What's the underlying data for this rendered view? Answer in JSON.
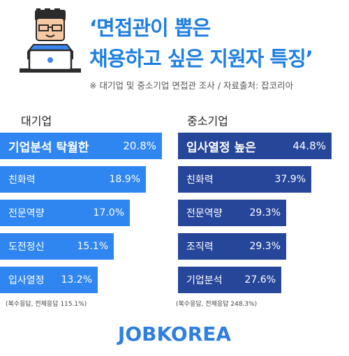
{
  "title_line1": "‘면접관이 뽑은",
  "title_line2": "채용하고 싶은 지원자 특징’",
  "note": "※ 대기업 및 중소기업 면접관 조사 / 자료출처: 잡코리아",
  "logo": "JOBKOREA",
  "colors": {
    "large": "#2f86f0",
    "small": "#26469a",
    "title": "#1f7fe0"
  },
  "chart_data": [
    {
      "type": "bar",
      "title": "대기업",
      "categories": [
        "기업분석 탁월한",
        "친화력",
        "전문역량",
        "도전정신",
        "입사열정"
      ],
      "values": [
        20.8,
        18.9,
        17.0,
        15.1,
        13.2
      ],
      "value_labels": [
        "20.8%",
        "18.9%",
        "17.0%",
        "15.1%",
        "13.2%"
      ],
      "footnote": "(복수응답, 전체응답 115.1%)"
    },
    {
      "type": "bar",
      "title": "중소기업",
      "categories": [
        "입사열정 높은",
        "친화력",
        "전문역량",
        "조직력",
        "기업분석"
      ],
      "values": [
        44.8,
        37.9,
        29.3,
        29.3,
        27.6
      ],
      "value_labels": [
        "44.8%",
        "37.9%",
        "29.3%",
        "29.3%",
        "27.6%"
      ],
      "footnote": "(복수응답, 전체응답 248.3%)"
    }
  ]
}
